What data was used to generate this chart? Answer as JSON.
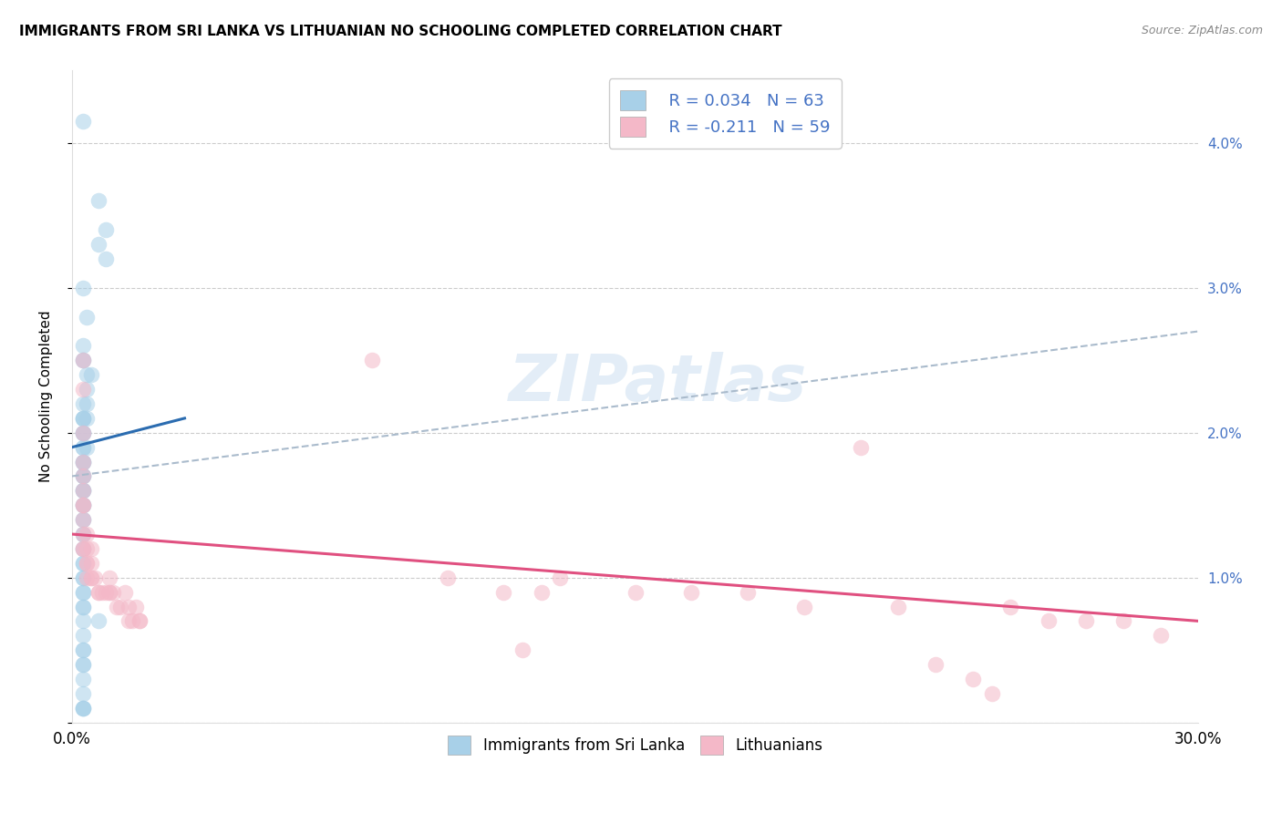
{
  "title": "IMMIGRANTS FROM SRI LANKA VS LITHUANIAN NO SCHOOLING COMPLETED CORRELATION CHART",
  "source": "Source: ZipAtlas.com",
  "ylabel": "No Schooling Completed",
  "blue_color": "#a8d0e8",
  "pink_color": "#f4b8c8",
  "blue_line_color": "#2b6cb0",
  "pink_line_color": "#e05080",
  "dashed_line_color": "#aabbcc",
  "background_color": "#ffffff",
  "watermark_text": "ZIPatlas",
  "sri_lanka_x": [
    0.003,
    0.007,
    0.007,
    0.009,
    0.009,
    0.003,
    0.004,
    0.003,
    0.003,
    0.003,
    0.004,
    0.005,
    0.004,
    0.004,
    0.003,
    0.003,
    0.003,
    0.003,
    0.004,
    0.003,
    0.003,
    0.003,
    0.003,
    0.003,
    0.004,
    0.003,
    0.003,
    0.003,
    0.003,
    0.003,
    0.003,
    0.003,
    0.003,
    0.003,
    0.003,
    0.003,
    0.003,
    0.003,
    0.003,
    0.003,
    0.003,
    0.003,
    0.003,
    0.003,
    0.003,
    0.003,
    0.003,
    0.003,
    0.003,
    0.003,
    0.003,
    0.007,
    0.003,
    0.003,
    0.003,
    0.003,
    0.003,
    0.003,
    0.003,
    0.003,
    0.003,
    0.003,
    0.003
  ],
  "sri_lanka_y": [
    0.0415,
    0.036,
    0.033,
    0.034,
    0.032,
    0.03,
    0.028,
    0.026,
    0.025,
    0.025,
    0.024,
    0.024,
    0.023,
    0.022,
    0.022,
    0.021,
    0.021,
    0.021,
    0.021,
    0.02,
    0.02,
    0.02,
    0.019,
    0.019,
    0.019,
    0.018,
    0.018,
    0.018,
    0.017,
    0.017,
    0.017,
    0.016,
    0.016,
    0.016,
    0.015,
    0.015,
    0.015,
    0.014,
    0.014,
    0.013,
    0.013,
    0.012,
    0.012,
    0.011,
    0.011,
    0.01,
    0.01,
    0.009,
    0.009,
    0.008,
    0.008,
    0.007,
    0.007,
    0.006,
    0.005,
    0.005,
    0.004,
    0.004,
    0.003,
    0.002,
    0.001,
    0.001,
    0.001
  ],
  "lithuanian_x": [
    0.003,
    0.003,
    0.08,
    0.003,
    0.003,
    0.003,
    0.003,
    0.003,
    0.003,
    0.003,
    0.003,
    0.003,
    0.003,
    0.004,
    0.004,
    0.005,
    0.004,
    0.004,
    0.004,
    0.005,
    0.005,
    0.005,
    0.006,
    0.007,
    0.007,
    0.008,
    0.009,
    0.01,
    0.01,
    0.01,
    0.011,
    0.012,
    0.013,
    0.014,
    0.015,
    0.015,
    0.016,
    0.017,
    0.018,
    0.018,
    0.1,
    0.115,
    0.125,
    0.13,
    0.15,
    0.165,
    0.18,
    0.195,
    0.21,
    0.22,
    0.23,
    0.24,
    0.25,
    0.26,
    0.27,
    0.28,
    0.29,
    0.245,
    0.12
  ],
  "lithuanian_y": [
    0.025,
    0.023,
    0.025,
    0.02,
    0.018,
    0.017,
    0.016,
    0.015,
    0.015,
    0.014,
    0.013,
    0.012,
    0.012,
    0.013,
    0.012,
    0.012,
    0.011,
    0.011,
    0.01,
    0.011,
    0.01,
    0.01,
    0.01,
    0.009,
    0.009,
    0.009,
    0.009,
    0.009,
    0.01,
    0.009,
    0.009,
    0.008,
    0.008,
    0.009,
    0.008,
    0.007,
    0.007,
    0.008,
    0.007,
    0.007,
    0.01,
    0.009,
    0.009,
    0.01,
    0.009,
    0.009,
    0.009,
    0.008,
    0.019,
    0.008,
    0.004,
    0.003,
    0.008,
    0.007,
    0.007,
    0.007,
    0.006,
    0.002,
    0.005
  ],
  "sri_lanka_trend_x": [
    0.0,
    0.03
  ],
  "sri_lanka_trend_y": [
    0.019,
    0.021
  ],
  "lithuanian_trend_x": [
    0.0,
    0.3
  ],
  "lithuanian_trend_y": [
    0.013,
    0.007
  ],
  "dashed_trend_x": [
    0.0,
    0.3
  ],
  "dashed_trend_y": [
    0.017,
    0.027
  ],
  "xlim": [
    0.0,
    0.3
  ],
  "ylim": [
    0.0,
    0.045
  ],
  "x_ticks": [
    0.0,
    0.05,
    0.1,
    0.15,
    0.2,
    0.25,
    0.3
  ],
  "y_ticks": [
    0.0,
    0.01,
    0.02,
    0.03,
    0.04
  ],
  "y_tick_labels_right": [
    "",
    "1.0%",
    "2.0%",
    "3.0%",
    "4.0%"
  ],
  "legend_blue_label": "R = 0.034   N = 63",
  "legend_pink_label": "R = -0.211   N = 59",
  "bottom_legend_blue": "Immigrants from Sri Lanka",
  "bottom_legend_pink": "Lithuanians",
  "title_fontsize": 11,
  "axis_label_color": "#4472c4",
  "source_color": "#888888"
}
